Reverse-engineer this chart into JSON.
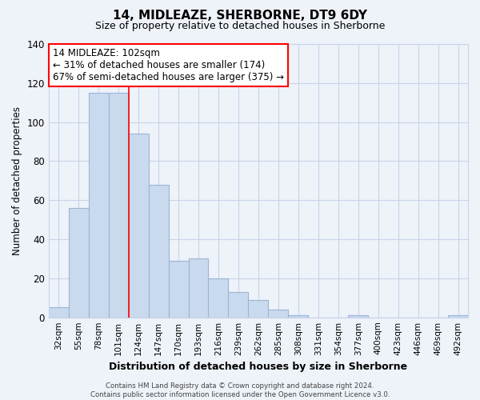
{
  "title": "14, MIDLEAZE, SHERBORNE, DT9 6DY",
  "subtitle": "Size of property relative to detached houses in Sherborne",
  "xlabel": "Distribution of detached houses by size in Sherborne",
  "ylabel": "Number of detached properties",
  "bar_labels": [
    "32sqm",
    "55sqm",
    "78sqm",
    "101sqm",
    "124sqm",
    "147sqm",
    "170sqm",
    "193sqm",
    "216sqm",
    "239sqm",
    "262sqm",
    "285sqm",
    "308sqm",
    "331sqm",
    "354sqm",
    "377sqm",
    "400sqm",
    "423sqm",
    "446sqm",
    "469sqm",
    "492sqm"
  ],
  "bar_values": [
    5,
    56,
    115,
    115,
    94,
    68,
    29,
    30,
    20,
    13,
    9,
    4,
    1,
    0,
    0,
    1,
    0,
    0,
    0,
    0,
    1
  ],
  "bar_color": "#c9d9ee",
  "bar_edge_color": "#9ab5d5",
  "vline_color": "red",
  "vline_x": 3.5,
  "ylim": [
    0,
    140
  ],
  "yticks": [
    0,
    20,
    40,
    60,
    80,
    100,
    120,
    140
  ],
  "annotation_title": "14 MIDLEAZE: 102sqm",
  "annotation_line1": "← 31% of detached houses are smaller (174)",
  "annotation_line2": "67% of semi-detached houses are larger (375) →",
  "annotation_box_color": "white",
  "annotation_box_edge": "red",
  "footer_line1": "Contains HM Land Registry data © Crown copyright and database right 2024.",
  "footer_line2": "Contains public sector information licensed under the Open Government Licence v3.0.",
  "background_color": "#eef2f9",
  "grid_color": "#c8d4e8",
  "title_fontsize": 11,
  "subtitle_fontsize": 9
}
